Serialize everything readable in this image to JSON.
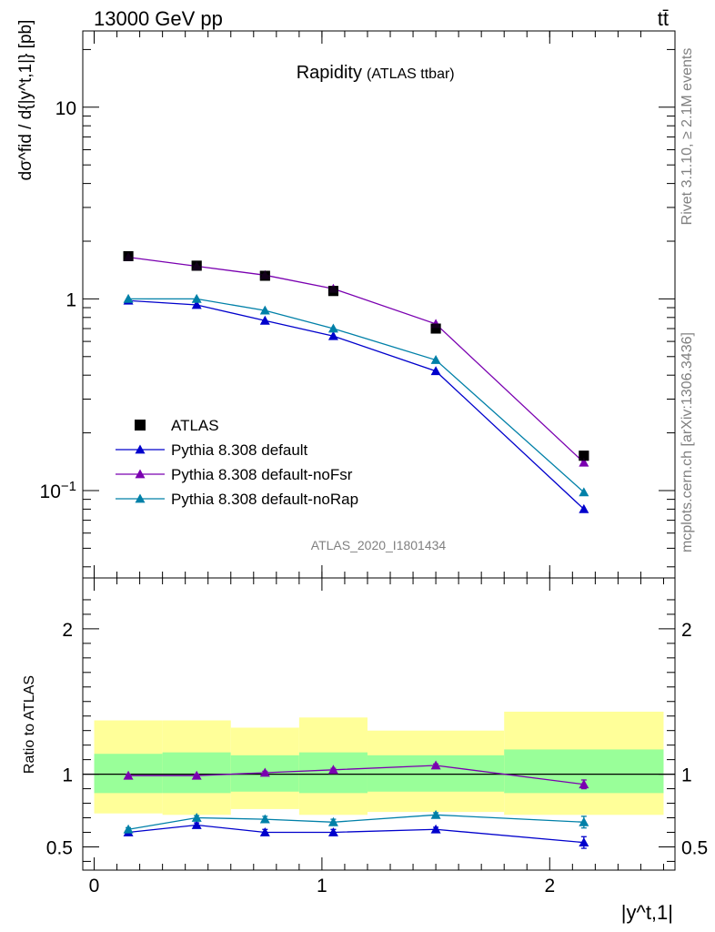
{
  "header": {
    "left": "13000 GeV pp",
    "right": "tt̄"
  },
  "side_labels": {
    "top": "Rivet 3.1.10, ≥ 2.1M events",
    "bottom": "mcplots.cern.ch [arXiv:1306.3436]"
  },
  "chart_data": [
    {
      "type": "line",
      "title": "Rapidity",
      "subtitle": "(ATLAS ttbar)",
      "watermark": "ATLAS_2020_I1801434",
      "ylabel": "dσ^fid / d{|y^t,1|} [pb]",
      "yscale": "log",
      "ylim": [
        0.035,
        25
      ],
      "xlim": [
        -0.05,
        2.55
      ],
      "ytick_labels": [
        "10^−1",
        "1",
        "10"
      ],
      "bins": [
        [
          0.0,
          0.3
        ],
        [
          0.3,
          0.6
        ],
        [
          0.6,
          0.9
        ],
        [
          0.9,
          1.2
        ],
        [
          1.2,
          1.8
        ],
        [
          1.8,
          2.5
        ]
      ],
      "x": [
        0.15,
        0.45,
        0.75,
        1.05,
        1.5,
        2.15
      ],
      "legend_position": "bottom-left",
      "series": [
        {
          "name": "ATLAS",
          "marker": "square",
          "color": "#000000",
          "values": [
            1.67,
            1.49,
            1.32,
            1.1,
            0.7,
            0.152
          ]
        },
        {
          "name": "Pythia 8.308 default",
          "marker": "triangle",
          "color": "#0000cc",
          "values": [
            0.98,
            0.93,
            0.77,
            0.64,
            0.42,
            0.08
          ]
        },
        {
          "name": "Pythia 8.308 default-noFsr",
          "marker": "triangle",
          "color": "#7a00b0",
          "values": [
            1.65,
            1.48,
            1.33,
            1.13,
            0.74,
            0.14
          ]
        },
        {
          "name": "Pythia 8.308 default-noRap",
          "marker": "triangle",
          "color": "#0080a8",
          "values": [
            1.0,
            1.0,
            0.87,
            0.7,
            0.48,
            0.098
          ]
        }
      ]
    },
    {
      "type": "line",
      "ylabel": "Ratio to ATLAS",
      "xlabel": "|y^t,1|",
      "ylim": [
        0.34,
        2.35
      ],
      "xlim": [
        -0.05,
        2.55
      ],
      "ytick_labels": [
        "0.5",
        "1",
        "2"
      ],
      "xtick_labels": [
        "0",
        "1",
        "2"
      ],
      "reference_line": 1,
      "bands": {
        "bins": [
          [
            0.0,
            0.3
          ],
          [
            0.3,
            0.6
          ],
          [
            0.6,
            0.9
          ],
          [
            0.9,
            1.2
          ],
          [
            1.2,
            1.8
          ],
          [
            1.8,
            2.5
          ]
        ],
        "inner": [
          [
            0.87,
            1.14
          ],
          [
            0.87,
            1.15
          ],
          [
            0.88,
            1.13
          ],
          [
            0.87,
            1.15
          ],
          [
            0.88,
            1.13
          ],
          [
            0.87,
            1.17
          ]
        ],
        "outer": [
          [
            0.73,
            1.37
          ],
          [
            0.72,
            1.37
          ],
          [
            0.76,
            1.32
          ],
          [
            0.72,
            1.39
          ],
          [
            0.74,
            1.3
          ],
          [
            0.72,
            1.43
          ]
        ],
        "inner_color": "#99ff99",
        "outer_color": "#ffff99"
      },
      "x": [
        0.15,
        0.45,
        0.75,
        1.05,
        1.5,
        2.15
      ],
      "series": [
        {
          "name": "Pythia 8.308 default",
          "color": "#0000cc",
          "values": [
            0.6,
            0.65,
            0.6,
            0.6,
            0.62,
            0.53
          ],
          "errors": [
            0.012,
            0.015,
            0.02,
            0.02,
            0.015,
            0.04
          ]
        },
        {
          "name": "Pythia 8.308 default-noFsr",
          "color": "#7a00b0",
          "values": [
            0.99,
            0.99,
            1.01,
            1.03,
            1.06,
            0.93
          ],
          "errors": [
            0.008,
            0.01,
            0.01,
            0.01,
            0.01,
            0.03
          ]
        },
        {
          "name": "Pythia 8.308 default-noRap",
          "color": "#0080a8",
          "values": [
            0.62,
            0.7,
            0.69,
            0.67,
            0.72,
            0.67
          ],
          "errors": [
            0.012,
            0.015,
            0.02,
            0.02,
            0.015,
            0.04
          ]
        }
      ]
    }
  ]
}
